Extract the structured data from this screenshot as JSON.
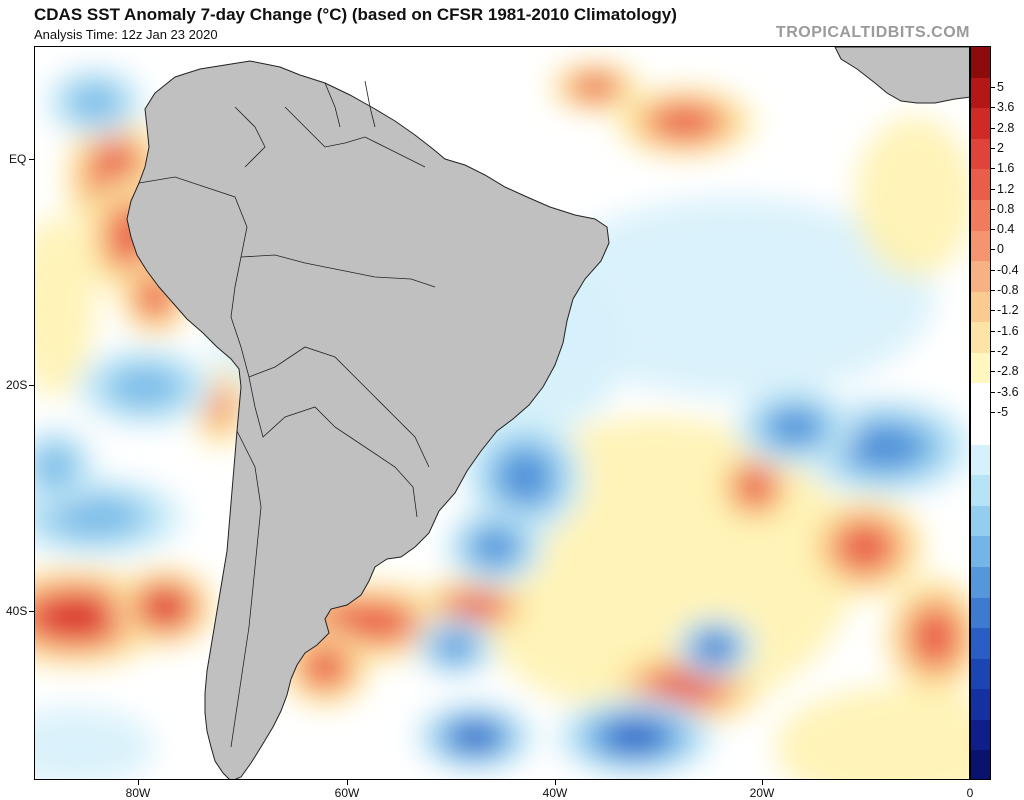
{
  "header": {
    "title": "CDAS SST Anomaly 7-day Change (°C) (based on CFSR 1981-2010 Climatology)",
    "subtitle": "Analysis Time: 12z Jan 23 2020",
    "brand": "TROPICALTIDBITS.COM"
  },
  "axes": {
    "lat_labels": [
      "EQ",
      "20S",
      "40S"
    ],
    "lon_labels": [
      "80W",
      "60W",
      "40W",
      "20W",
      "0"
    ]
  },
  "colorbar": {
    "labels": [
      "5",
      "3.6",
      "2.8",
      "2",
      "1.6",
      "1.2",
      "0.8",
      "0.4",
      "0",
      "-0.4",
      "-0.8",
      "-1.2",
      "-1.6",
      "-2",
      "-2.8",
      "-3.6",
      "-5"
    ],
    "colors": [
      "#8c0c0c",
      "#b51717",
      "#cf2a26",
      "#e0433a",
      "#ea5d4a",
      "#f27b5e",
      "#f5956f",
      "#f8b183",
      "#fbcb92",
      "#fde3a5",
      "#fff6c0",
      "#ffffff",
      "#ffffff",
      "#d6f1fb",
      "#b6e4f6",
      "#93cdef",
      "#74b4e6",
      "#5696da",
      "#3d7ad0",
      "#2a5ec4",
      "#1c45b4",
      "#1530a0",
      "#0f1e88",
      "#0a1270"
    ]
  },
  "anomalies": [
    {
      "name": "peru-coast-warm",
      "sign": "warm",
      "level": 0.8
    },
    {
      "name": "chile-coast-warm",
      "sign": "warm",
      "level": 0.55
    },
    {
      "name": "southeast-pacific-warm",
      "sign": "warm",
      "level": 0.9
    },
    {
      "name": "argentine-basin-warm",
      "sign": "warm",
      "level": 0.85
    },
    {
      "name": "gulf-of-guinea-warm",
      "sign": "warm",
      "level": 0.75
    },
    {
      "name": "central-south-atlantic-warm",
      "sign": "warm",
      "level": 0.7
    },
    {
      "name": "ecuador-offshore-cool",
      "sign": "cool",
      "level": 0.5
    },
    {
      "name": "brazil-coast-cool",
      "sign": "cool",
      "level": 0.8
    },
    {
      "name": "east-south-atlantic-cool",
      "sign": "cool",
      "level": 0.85
    },
    {
      "name": "pacific-subtropical-cool",
      "sign": "cool",
      "level": 0.6
    },
    {
      "name": "southern-ocean-cool",
      "sign": "cool",
      "level": 0.9
    }
  ]
}
